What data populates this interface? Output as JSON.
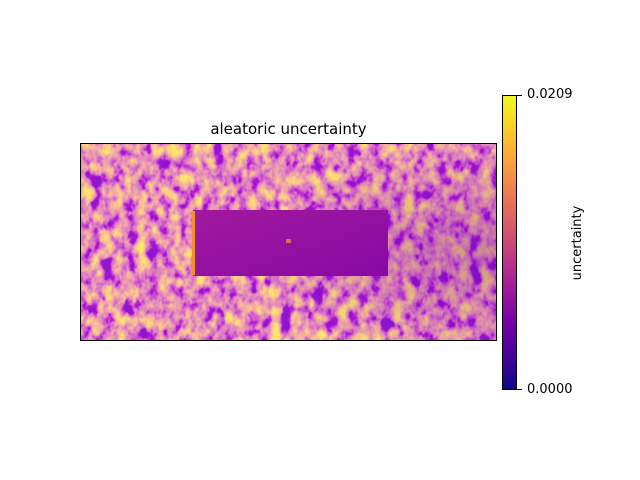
{
  "chart_data": {
    "type": "heatmap",
    "title": "aleatoric uncertainty",
    "xlabel": "",
    "ylabel": "",
    "x_ticks": [],
    "y_ticks": [],
    "colormap": "plasma",
    "colorbar": {
      "label": "uncertainty",
      "min": 0.0,
      "max": 0.0209,
      "tick_labels": [
        "0.0209",
        "0.0000"
      ]
    },
    "colors": {
      "background": "#ffffff",
      "axes_edge": "#000000"
    }
  }
}
